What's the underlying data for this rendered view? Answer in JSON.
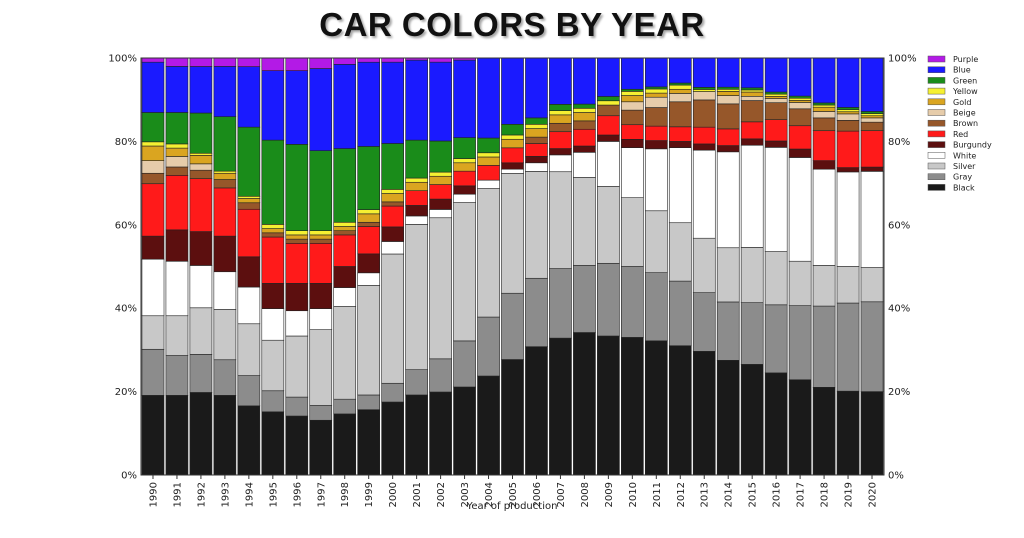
{
  "title": "CAR COLORS BY YEAR",
  "chart_data": {
    "type": "bar",
    "stacked": true,
    "normalized": true,
    "xlabel": "Year of production",
    "ylabel": "",
    "ylim": [
      0,
      1
    ],
    "y_ticks": [
      "0%",
      "20%",
      "40%",
      "60%",
      "80%",
      "100%"
    ],
    "y_tick_values": [
      0,
      0.2,
      0.4,
      0.6,
      0.8,
      1.0
    ],
    "legend_position": "right",
    "categories": [
      "1990",
      "1991",
      "1992",
      "1993",
      "1994",
      "1995",
      "1996",
      "1997",
      "1998",
      "1999",
      "2000",
      "2001",
      "2002",
      "2003",
      "2004",
      "2005",
      "2006",
      "2007",
      "2008",
      "2009",
      "2010",
      "2011",
      "2012",
      "2013",
      "2014",
      "2015",
      "2016",
      "2017",
      "2018",
      "2019",
      "2020"
    ],
    "series": [
      {
        "name": "Black",
        "color": "#1a1a1a",
        "values": [
          0.19,
          0.19,
          0.195,
          0.19,
          0.16,
          0.15,
          0.14,
          0.13,
          0.145,
          0.155,
          0.175,
          0.19,
          0.2,
          0.21,
          0.235,
          0.27,
          0.3,
          0.325,
          0.34,
          0.325,
          0.33,
          0.325,
          0.31,
          0.295,
          0.275,
          0.26,
          0.24,
          0.225,
          0.205,
          0.195,
          0.195
        ]
      },
      {
        "name": "Gray",
        "color": "#8c8c8c",
        "values": [
          0.11,
          0.095,
          0.09,
          0.085,
          0.07,
          0.05,
          0.045,
          0.035,
          0.035,
          0.035,
          0.045,
          0.06,
          0.08,
          0.11,
          0.14,
          0.155,
          0.16,
          0.165,
          0.16,
          0.17,
          0.17,
          0.165,
          0.155,
          0.14,
          0.14,
          0.145,
          0.16,
          0.175,
          0.19,
          0.205,
          0.21
        ]
      },
      {
        "name": "Silver",
        "color": "#c8c8c8",
        "values": [
          0.08,
          0.095,
          0.11,
          0.12,
          0.12,
          0.12,
          0.145,
          0.18,
          0.22,
          0.26,
          0.31,
          0.345,
          0.34,
          0.33,
          0.305,
          0.28,
          0.25,
          0.23,
          0.21,
          0.18,
          0.165,
          0.15,
          0.14,
          0.13,
          0.13,
          0.13,
          0.125,
          0.105,
          0.095,
          0.085,
          0.08
        ]
      },
      {
        "name": "White",
        "color": "#ffffff",
        "values": [
          0.135,
          0.13,
          0.1,
          0.09,
          0.085,
          0.075,
          0.06,
          0.05,
          0.045,
          0.03,
          0.03,
          0.02,
          0.02,
          0.02,
          0.02,
          0.01,
          0.02,
          0.04,
          0.06,
          0.105,
          0.12,
          0.15,
          0.18,
          0.21,
          0.23,
          0.24,
          0.245,
          0.245,
          0.225,
          0.22,
          0.225
        ]
      },
      {
        "name": "Burgundy",
        "color": "#5c0f0f",
        "values": [
          0.055,
          0.075,
          0.08,
          0.085,
          0.07,
          0.06,
          0.065,
          0.06,
          0.05,
          0.045,
          0.035,
          0.025,
          0.025,
          0.02,
          0.0,
          0.015,
          0.015,
          0.015,
          0.015,
          0.015,
          0.02,
          0.02,
          0.015,
          0.015,
          0.015,
          0.015,
          0.015,
          0.02,
          0.02,
          0.01,
          0.01
        ]
      },
      {
        "name": "Red",
        "color": "#ff1a1a",
        "values": [
          0.125,
          0.13,
          0.125,
          0.115,
          0.11,
          0.11,
          0.095,
          0.095,
          0.075,
          0.065,
          0.05,
          0.035,
          0.035,
          0.035,
          0.035,
          0.035,
          0.03,
          0.04,
          0.04,
          0.045,
          0.035,
          0.035,
          0.035,
          0.04,
          0.04,
          0.04,
          0.05,
          0.055,
          0.07,
          0.085,
          0.085
        ]
      },
      {
        "name": "Brown",
        "color": "#96572a",
        "values": [
          0.025,
          0.02,
          0.02,
          0.02,
          0.015,
          0.01,
          0.01,
          0.01,
          0.01,
          0.01,
          0.01,
          0.0,
          0.0,
          0.0,
          0.0,
          0.0,
          0.015,
          0.02,
          0.02,
          0.025,
          0.035,
          0.045,
          0.06,
          0.065,
          0.06,
          0.05,
          0.04,
          0.04,
          0.03,
          0.025,
          0.02
        ]
      },
      {
        "name": "Beige",
        "color": "#e6ccaa",
        "values": [
          0.03,
          0.025,
          0.015,
          0.0,
          0.0,
          0.0,
          0.0,
          0.0,
          0.0,
          0.0,
          0.0,
          0.0,
          0.0,
          0.0,
          0.0,
          0.0,
          0.0,
          0.0,
          0.0,
          0.0,
          0.02,
          0.025,
          0.02,
          0.02,
          0.02,
          0.01,
          0.01,
          0.015,
          0.015,
          0.015,
          0.01
        ]
      },
      {
        "name": "Gold",
        "color": "#daa520",
        "values": [
          0.035,
          0.02,
          0.02,
          0.015,
          0.01,
          0.01,
          0.01,
          0.01,
          0.01,
          0.02,
          0.02,
          0.02,
          0.02,
          0.02,
          0.02,
          0.02,
          0.02,
          0.02,
          0.02,
          0.0,
          0.015,
          0.01,
          0.01,
          0.0,
          0.01,
          0.01,
          0.005,
          0.005,
          0.01,
          0.005,
          0.005
        ]
      },
      {
        "name": "Yellow",
        "color": "#f5f032",
        "values": [
          0.01,
          0.01,
          0.005,
          0.005,
          0.005,
          0.01,
          0.01,
          0.01,
          0.01,
          0.01,
          0.01,
          0.01,
          0.01,
          0.01,
          0.01,
          0.01,
          0.01,
          0.01,
          0.01,
          0.01,
          0.01,
          0.01,
          0.01,
          0.005,
          0.005,
          0.005,
          0.005,
          0.005,
          0.005,
          0.005,
          0.005
        ]
      },
      {
        "name": "Green",
        "color": "#1a8c1a",
        "values": [
          0.07,
          0.075,
          0.095,
          0.13,
          0.16,
          0.2,
          0.205,
          0.19,
          0.175,
          0.15,
          0.11,
          0.09,
          0.075,
          0.05,
          0.035,
          0.025,
          0.015,
          0.015,
          0.01,
          0.01,
          0.005,
          0.005,
          0.005,
          0.005,
          0.005,
          0.005,
          0.005,
          0.005,
          0.005,
          0.005,
          0.005
        ]
      },
      {
        "name": "Blue",
        "color": "#1a1aff",
        "values": [
          0.12,
          0.11,
          0.11,
          0.12,
          0.14,
          0.165,
          0.175,
          0.195,
          0.2,
          0.2,
          0.195,
          0.19,
          0.19,
          0.185,
          0.19,
          0.155,
          0.14,
          0.11,
          0.11,
          0.09,
          0.075,
          0.07,
          0.06,
          0.07,
          0.07,
          0.07,
          0.08,
          0.09,
          0.105,
          0.115,
          0.125
        ]
      },
      {
        "name": "Purple",
        "color": "#b31ae6",
        "values": [
          0.01,
          0.02,
          0.02,
          0.02,
          0.02,
          0.03,
          0.03,
          0.025,
          0.015,
          0.01,
          0.01,
          0.005,
          0.01,
          0.005,
          0.0,
          0.0,
          0.0,
          0.0,
          0.0,
          0.0,
          0.0,
          0.0,
          0.0,
          0.0,
          0.0,
          0.0,
          0.0,
          0.0,
          0.0,
          0.0,
          0.0
        ]
      }
    ],
    "legend_order": [
      "Purple",
      "Blue",
      "Green",
      "Yellow",
      "Gold",
      "Beige",
      "Brown",
      "Red",
      "Burgundy",
      "White",
      "Silver",
      "Gray",
      "Black"
    ]
  }
}
